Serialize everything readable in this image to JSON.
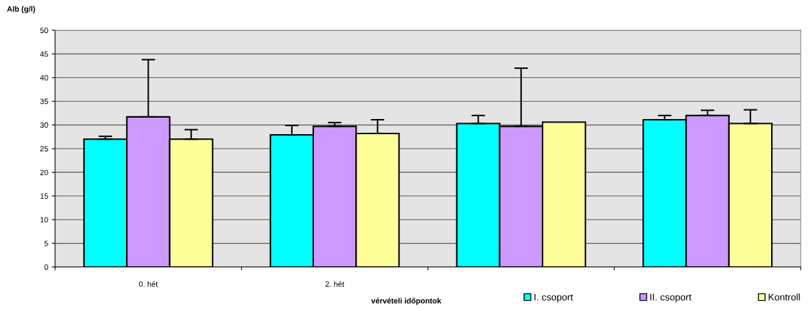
{
  "chart_data": {
    "type": "bar",
    "ylabel": "Alb (g/l)",
    "xlabel": "vérvételi időpontok",
    "categories": [
      "0. hét",
      "2. hét",
      null,
      null
    ],
    "ylim": [
      0,
      50
    ],
    "yticks": [
      0,
      5,
      10,
      15,
      20,
      25,
      30,
      35,
      40,
      45,
      50
    ],
    "grid": "y",
    "legend": "bottom",
    "series": [
      {
        "name": "I. csoport",
        "color": "#00ffff",
        "values": [
          27.0,
          27.9,
          30.3,
          31.1
        ],
        "errors": [
          [
            27.0,
            27.6
          ],
          [
            27.9,
            29.9
          ],
          [
            30.3,
            32.0
          ],
          [
            31.1,
            32.0
          ]
        ]
      },
      {
        "name": "II. csoport",
        "color": "#cc99ff",
        "values": [
          31.7,
          29.7,
          29.7,
          32.0
        ],
        "errors": [
          [
            31.7,
            43.8
          ],
          [
            29.7,
            30.5
          ],
          [
            29.7,
            42.0
          ],
          [
            32.0,
            33.1
          ]
        ]
      },
      {
        "name": "Kontroll",
        "color": "#ffff99",
        "values": [
          27.0,
          28.2,
          30.6,
          30.3
        ],
        "errors": [
          [
            27.0,
            29.0
          ],
          [
            28.2,
            31.1
          ],
          null,
          [
            30.3,
            33.2
          ]
        ]
      }
    ]
  }
}
